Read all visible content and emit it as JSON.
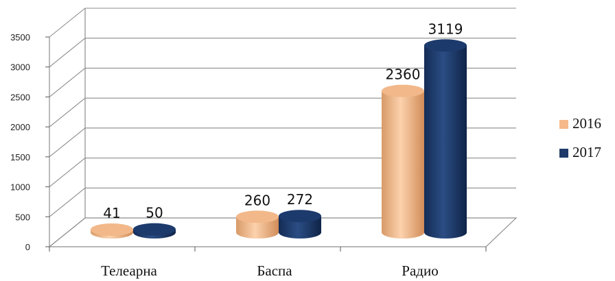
{
  "chart_data": {
    "type": "bar",
    "categories": [
      "Телеарна",
      "Баспа",
      "Радио"
    ],
    "series": [
      {
        "name": "2016",
        "values": [
          41,
          260,
          2360
        ],
        "color": "#f5b98a"
      },
      {
        "name": "2017",
        "values": [
          50,
          272,
          3119
        ],
        "color": "#1f3b6b"
      }
    ],
    "yticks": [
      "0",
      "500",
      "1000",
      "1500",
      "2000",
      "2500",
      "3000",
      "3500"
    ],
    "ylim": [
      0,
      3500
    ],
    "grid": true,
    "legend": "right",
    "data_labels": [
      [
        "41",
        "260",
        "2360"
      ],
      [
        "50",
        "272",
        "3119"
      ]
    ]
  }
}
